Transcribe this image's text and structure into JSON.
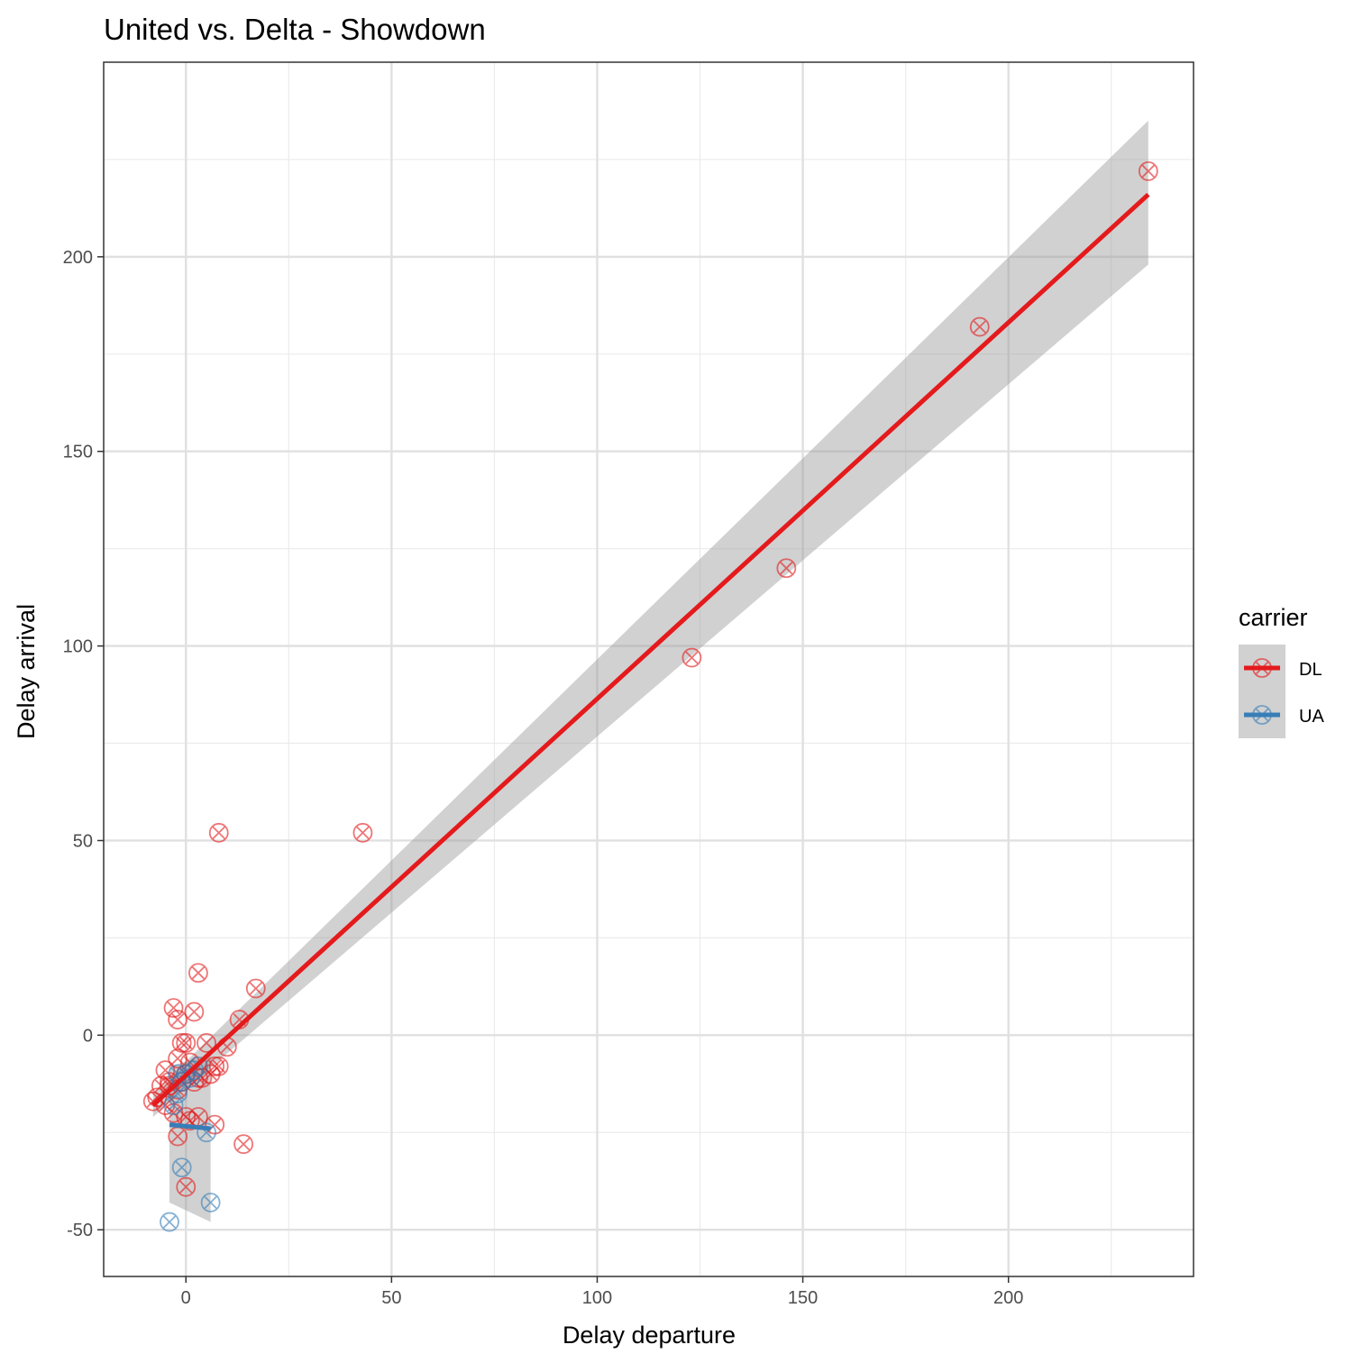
{
  "chart_data": {
    "type": "scatter",
    "title": "United vs. Delta - Showdown",
    "xlabel": "Delay departure",
    "ylabel": "Delay arrival",
    "xlim": [
      -20,
      245
    ],
    "ylim": [
      -62,
      250
    ],
    "x_ticks": [
      0,
      50,
      100,
      150,
      200
    ],
    "y_ticks": [
      -50,
      0,
      50,
      100,
      150,
      200
    ],
    "x_tick_labels": [
      "0",
      "50",
      "100",
      "150",
      "200"
    ],
    "y_tick_labels": [
      "-50",
      "0",
      "50",
      "100",
      "150",
      "200"
    ],
    "grid": true,
    "legend": {
      "title": "carrier",
      "position": "right",
      "entries": [
        "DL",
        "UA"
      ]
    },
    "series": [
      {
        "name": "DL",
        "color": "#e41a1c",
        "marker": "circle-x",
        "points": [
          [
            234,
            222
          ],
          [
            193,
            182
          ],
          [
            146,
            120
          ],
          [
            123,
            97
          ],
          [
            43,
            52
          ],
          [
            8,
            52
          ],
          [
            17,
            12
          ],
          [
            3,
            16
          ],
          [
            -3,
            7
          ],
          [
            2,
            6
          ],
          [
            -2,
            4
          ],
          [
            13,
            4
          ],
          [
            -1,
            -2
          ],
          [
            0,
            -2
          ],
          [
            5,
            -2
          ],
          [
            10,
            -3
          ],
          [
            -2,
            -6
          ],
          [
            1,
            -7
          ],
          [
            -5,
            -9
          ],
          [
            8,
            -8
          ],
          [
            7,
            -8
          ],
          [
            0,
            -10
          ],
          [
            4,
            -11
          ],
          [
            6,
            -10
          ],
          [
            -6,
            -13
          ],
          [
            -4,
            -12
          ],
          [
            -2,
            -14
          ],
          [
            -1,
            -12
          ],
          [
            2,
            -12
          ],
          [
            3,
            -11
          ],
          [
            -8,
            -17
          ],
          [
            -7,
            -16
          ],
          [
            -5,
            -18
          ],
          [
            -3,
            -20
          ],
          [
            0,
            -21
          ],
          [
            1,
            -22
          ],
          [
            3,
            -21
          ],
          [
            7,
            -23
          ],
          [
            -2,
            -26
          ],
          [
            14,
            -28
          ],
          [
            0,
            -39
          ],
          [
            -4,
            -13
          ]
        ],
        "fit": {
          "x": [
            -8,
            234
          ],
          "y": [
            -18,
            216
          ],
          "ci_lower": [
            -21,
            198
          ],
          "ci_upper": [
            -15,
            235
          ]
        }
      },
      {
        "name": "UA",
        "color": "#377eb8",
        "marker": "circle-x",
        "points": [
          [
            -4,
            -48
          ],
          [
            6,
            -43
          ],
          [
            -1,
            -34
          ],
          [
            5,
            -25
          ],
          [
            -3,
            -18
          ],
          [
            -2,
            -15
          ],
          [
            -1,
            -12
          ],
          [
            0,
            -10
          ],
          [
            1,
            -11
          ],
          [
            2,
            -9
          ],
          [
            3,
            -8
          ],
          [
            -2,
            -10
          ]
        ],
        "fit": {
          "x": [
            -4,
            6
          ],
          "y": [
            -23,
            -24
          ],
          "ci_lower": [
            -43,
            -48
          ],
          "ci_upper": [
            -8,
            -5
          ]
        }
      }
    ]
  }
}
